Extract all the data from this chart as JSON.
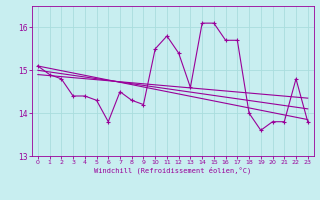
{
  "xlabel": "Windchill (Refroidissement éolien,°C)",
  "bg_color": "#c8eef0",
  "grid_color": "#aadddd",
  "line_color": "#990099",
  "xlim": [
    -0.5,
    23.5
  ],
  "ylim": [
    13.0,
    16.5
  ],
  "yticks": [
    13,
    14,
    15,
    16
  ],
  "xticks": [
    0,
    1,
    2,
    3,
    4,
    5,
    6,
    7,
    8,
    9,
    10,
    11,
    12,
    13,
    14,
    15,
    16,
    17,
    18,
    19,
    20,
    21,
    22,
    23
  ],
  "series1_x": [
    0,
    1,
    2,
    3,
    4,
    5,
    6,
    7,
    8,
    9,
    10,
    11,
    12,
    13,
    14,
    15,
    16,
    17,
    18,
    19,
    20,
    21,
    22,
    23
  ],
  "series1_y": [
    15.1,
    14.9,
    14.8,
    14.4,
    14.4,
    14.3,
    13.8,
    14.5,
    14.3,
    14.2,
    15.5,
    15.8,
    15.4,
    14.6,
    16.1,
    16.1,
    15.7,
    15.7,
    14.0,
    13.6,
    13.8,
    13.8,
    14.8,
    13.8
  ],
  "series2_x": [
    0,
    23
  ],
  "series2_y": [
    15.1,
    13.85
  ],
  "series3_x": [
    0,
    23
  ],
  "series3_y": [
    15.0,
    14.1
  ],
  "series4_x": [
    0,
    23
  ],
  "series4_y": [
    14.9,
    14.35
  ]
}
